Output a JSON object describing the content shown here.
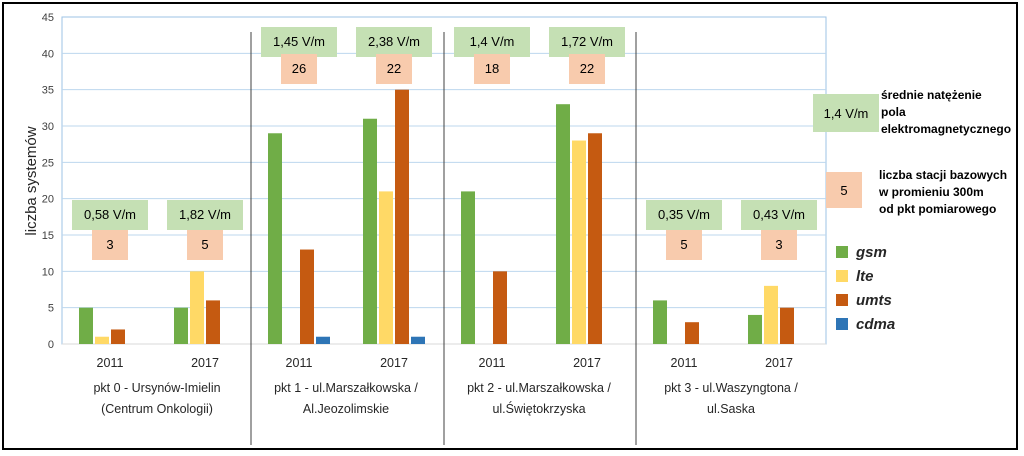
{
  "chart_data": {
    "type": "bar",
    "ylabel": "liczba systemów",
    "ylim": [
      0,
      45
    ],
    "yticks": [
      "0",
      "5",
      "10",
      "15",
      "20",
      "25",
      "30",
      "35",
      "40",
      "45"
    ],
    "grid": true,
    "groups": [
      {
        "name_lines": [
          "pkt 0 - Ursynów-Imielin",
          "(Centrum Onkologii)"
        ],
        "years": [
          {
            "year": "2011",
            "values": [
              5,
              1,
              2,
              0
            ],
            "field": "0,58 V/m",
            "stations": "3"
          },
          {
            "year": "2017",
            "values": [
              5,
              10,
              6,
              0
            ],
            "field": "1,82 V/m",
            "stations": "5"
          }
        ]
      },
      {
        "name_lines": [
          "pkt 1 - ul.Marszałkowska /",
          "Al.Jeozolimskie"
        ],
        "years": [
          {
            "year": "2011",
            "values": [
              29,
              0,
              13,
              1
            ],
            "field": "1,45 V/m",
            "stations": "26"
          },
          {
            "year": "2017",
            "values": [
              31,
              21,
              35,
              1
            ],
            "field": "2,38 V/m",
            "stations": "22"
          }
        ]
      },
      {
        "name_lines": [
          "pkt 2 - ul.Marszałkowska /",
          "ul.Świętokrzyska"
        ],
        "years": [
          {
            "year": "2011",
            "values": [
              21,
              0,
              10,
              0
            ],
            "field": "1,4 V/m",
            "stations": "18"
          },
          {
            "year": "2017",
            "values": [
              33,
              28,
              29,
              0
            ],
            "field": "1,72 V/m",
            "stations": "22"
          }
        ]
      },
      {
        "name_lines": [
          "pkt 3 - ul.Waszyngtona /",
          "ul.Saska"
        ],
        "years": [
          {
            "year": "2011",
            "values": [
              6,
              0,
              3,
              0
            ],
            "field": "0,35 V/m",
            "stations": "5"
          },
          {
            "year": "2017",
            "values": [
              4,
              8,
              5,
              0
            ],
            "field": "0,43 V/m",
            "stations": "3"
          }
        ]
      }
    ],
    "series": [
      {
        "name": "gsm",
        "color": "#70AD47"
      },
      {
        "name": "lte",
        "color": "#FFD966"
      },
      {
        "name": "umts",
        "color": "#C55A11"
      },
      {
        "name": "cdma",
        "color": "#2E75B6"
      }
    ],
    "legend": {
      "field_sample": "1,4 V/m",
      "field_lines": [
        "średnie natężenie",
        "pola",
        "elektromagnetycznego"
      ],
      "stations_sample": "5",
      "stations_lines": [
        "liczba stacji bazowych",
        "w promieniu 300m",
        "od pkt pomiarowego"
      ]
    },
    "colors": {
      "field_box": "#C5E0B4",
      "stations_box": "#F8CBAD"
    }
  }
}
